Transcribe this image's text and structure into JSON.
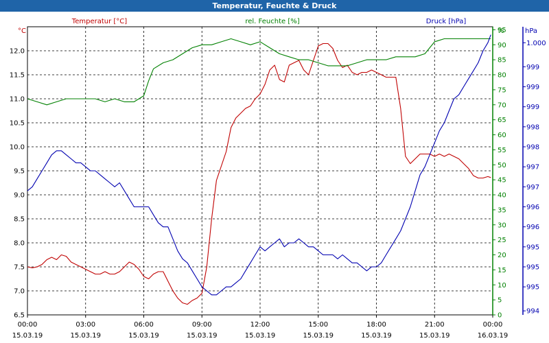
{
  "window_title": "Temperatur, Feuchte & Druck",
  "colors": {
    "temperature": "#c00000",
    "humidity": "#008000",
    "pressure": "#0000b0",
    "grid": "#000000",
    "titlebar": "#1f64a8"
  },
  "chart_data": {
    "type": "line",
    "title": "Temperatur, Feuchte & Druck",
    "axes": {
      "left": {
        "unit_label": "°C",
        "min": 6.5,
        "max": 12.5,
        "ticks": [
          "6.5",
          "7.0",
          "7.5",
          "8.0",
          "8.5",
          "9.0",
          "9.5",
          "10.0",
          "10.5",
          "11.0",
          "11.5",
          "12.0"
        ]
      },
      "right1": {
        "unit_label": "%",
        "min": 0,
        "max": 96,
        "ticks": [
          "0",
          "5",
          "10",
          "15",
          "20",
          "25",
          "30",
          "35",
          "40",
          "45",
          "50",
          "55",
          "60",
          "65",
          "70",
          "75",
          "80",
          "85",
          "90",
          "95"
        ]
      },
      "right2": {
        "unit_label": "hPa",
        "ticks": [
          "994",
          "995",
          "995",
          "995",
          "996",
          "996",
          "997",
          "997",
          "998",
          "998",
          "999",
          "999",
          "999",
          "1.000"
        ]
      }
    },
    "x_ticks": [
      {
        "time": "00:00",
        "date": "15.03.19"
      },
      {
        "time": "03:00",
        "date": "15.03.19"
      },
      {
        "time": "06:00",
        "date": "15.03.19"
      },
      {
        "time": "09:00",
        "date": "15.03.19"
      },
      {
        "time": "12:00",
        "date": "15.03.19"
      },
      {
        "time": "15:00",
        "date": "15.03.19"
      },
      {
        "time": "18:00",
        "date": "15.03.19"
      },
      {
        "time": "21:00",
        "date": "15.03.19"
      },
      {
        "time": "00:00",
        "date": "16.03.19"
      }
    ],
    "x_range_hours": [
      0,
      24
    ],
    "series": [
      {
        "name": "Temperatur [°C]",
        "axis": "left",
        "color": "#c00000",
        "x": [
          0,
          0.25,
          0.5,
          0.75,
          1,
          1.25,
          1.5,
          1.75,
          2,
          2.25,
          2.5,
          2.75,
          3,
          3.25,
          3.5,
          3.75,
          4,
          4.25,
          4.5,
          4.75,
          5,
          5.25,
          5.5,
          5.75,
          6,
          6.25,
          6.5,
          6.75,
          7,
          7.25,
          7.5,
          7.75,
          8,
          8.25,
          8.5,
          8.75,
          9,
          9.25,
          9.5,
          9.75,
          10,
          10.25,
          10.5,
          10.75,
          11,
          11.25,
          11.5,
          11.75,
          12,
          12.25,
          12.5,
          12.75,
          13,
          13.25,
          13.5,
          13.75,
          14,
          14.25,
          14.5,
          14.75,
          15,
          15.25,
          15.5,
          15.75,
          16,
          16.25,
          16.5,
          16.75,
          17,
          17.25,
          17.5,
          17.75,
          18,
          18.25,
          18.5,
          18.75,
          19,
          19.25,
          19.5,
          19.75,
          20,
          20.25,
          20.5,
          20.75,
          21,
          21.25,
          21.5,
          21.75,
          22,
          22.25,
          22.5,
          22.75,
          23,
          23.25,
          23.5,
          23.75,
          23.9
        ],
        "values": [
          7.5,
          7.48,
          7.5,
          7.55,
          7.65,
          7.7,
          7.65,
          7.75,
          7.72,
          7.6,
          7.55,
          7.5,
          7.45,
          7.4,
          7.35,
          7.35,
          7.4,
          7.35,
          7.35,
          7.4,
          7.5,
          7.6,
          7.55,
          7.45,
          7.3,
          7.25,
          7.35,
          7.4,
          7.4,
          7.2,
          7.0,
          6.85,
          6.75,
          6.72,
          6.8,
          6.85,
          6.95,
          7.5,
          8.5,
          9.3,
          9.6,
          9.9,
          10.4,
          10.6,
          10.7,
          10.8,
          10.85,
          11.0,
          11.1,
          11.3,
          11.6,
          11.7,
          11.4,
          11.35,
          11.7,
          11.75,
          11.8,
          11.6,
          11.5,
          11.8,
          12.1,
          12.15,
          12.15,
          12.05,
          11.8,
          11.65,
          11.7,
          11.55,
          11.5,
          11.55,
          11.55,
          11.6,
          11.55,
          11.5,
          11.45,
          11.45,
          11.45,
          10.8,
          9.8,
          9.65,
          9.75,
          9.85,
          9.85,
          9.85,
          9.8,
          9.85,
          9.8,
          9.85,
          9.8,
          9.75,
          9.65,
          9.55,
          9.4,
          9.35,
          9.35,
          9.38,
          9.36
        ],
        "note": ""
      },
      {
        "name": "rel. Feuchte [%]",
        "axis": "right1",
        "color": "#008000",
        "x": [
          0,
          0.5,
          1,
          1.5,
          2,
          2.5,
          3,
          3.5,
          4,
          4.5,
          5,
          5.5,
          6,
          6.25,
          6.5,
          7,
          7.5,
          8,
          8.5,
          9,
          9.5,
          10,
          10.5,
          11,
          11.5,
          12,
          12.5,
          13,
          13.5,
          14,
          14.5,
          15,
          15.5,
          16,
          16.5,
          17,
          17.5,
          18,
          18.5,
          19,
          19.5,
          20,
          20.5,
          21,
          21.5,
          22,
          22.5,
          23,
          23.5,
          23.9
        ],
        "values": [
          72,
          71,
          70,
          71,
          72,
          72,
          72,
          72,
          71,
          72,
          71,
          71,
          73,
          78,
          82,
          84,
          85,
          87,
          89,
          90,
          90,
          91,
          92,
          91,
          90,
          91,
          89,
          87,
          86,
          85,
          85,
          84,
          83,
          83,
          83,
          84,
          85,
          85,
          85,
          86,
          86,
          86,
          87,
          91,
          92,
          92,
          92,
          92,
          92,
          92
        ]
      },
      {
        "name": "Druck [hPa]",
        "axis": "right2",
        "color": "#0000b0",
        "x": [
          0,
          0.25,
          0.5,
          0.75,
          1,
          1.25,
          1.5,
          1.75,
          2,
          2.25,
          2.5,
          2.75,
          3,
          3.25,
          3.5,
          3.75,
          4,
          4.25,
          4.5,
          4.75,
          5,
          5.25,
          5.5,
          5.75,
          6,
          6.25,
          6.5,
          6.75,
          7,
          7.25,
          7.5,
          7.75,
          8,
          8.25,
          8.5,
          8.75,
          9,
          9.25,
          9.5,
          9.75,
          10,
          10.25,
          10.5,
          10.75,
          11,
          11.25,
          11.5,
          11.75,
          12,
          12.25,
          12.5,
          12.75,
          13,
          13.25,
          13.5,
          13.75,
          14,
          14.25,
          14.5,
          14.75,
          15,
          15.25,
          15.5,
          15.75,
          16,
          16.25,
          16.5,
          16.75,
          17,
          17.25,
          17.5,
          17.75,
          18,
          18.25,
          18.5,
          18.75,
          19,
          19.25,
          19.5,
          19.75,
          20,
          20.25,
          20.5,
          20.75,
          21,
          21.25,
          21.5,
          21.75,
          22,
          22.25,
          22.5,
          22.75,
          23,
          23.25,
          23.5,
          23.75,
          23.9
        ],
        "values": [
          997.0,
          997.1,
          997.3,
          997.5,
          997.7,
          997.9,
          998.0,
          998.0,
          997.9,
          997.8,
          997.7,
          997.7,
          997.6,
          997.5,
          997.5,
          997.4,
          997.3,
          997.2,
          997.1,
          997.2,
          997.0,
          996.8,
          996.6,
          996.6,
          996.6,
          996.6,
          996.4,
          996.2,
          996.1,
          996.1,
          995.8,
          995.5,
          995.3,
          995.2,
          995.0,
          994.8,
          994.6,
          994.5,
          994.4,
          994.4,
          994.5,
          994.6,
          994.6,
          994.7,
          994.8,
          995.0,
          995.2,
          995.4,
          995.6,
          995.5,
          995.6,
          995.7,
          995.8,
          995.6,
          995.7,
          995.7,
          995.8,
          995.7,
          995.6,
          995.6,
          995.5,
          995.4,
          995.4,
          995.4,
          995.3,
          995.4,
          995.3,
          995.2,
          995.2,
          995.1,
          995.0,
          995.1,
          995.1,
          995.2,
          995.4,
          995.6,
          995.8,
          996.0,
          996.3,
          996.6,
          997.0,
          997.4,
          997.6,
          997.9,
          998.2,
          998.5,
          998.7,
          999.0,
          999.3,
          999.4,
          999.6,
          999.8,
          1000.0,
          1000.2,
          1000.5,
          1000.7,
          1000.9
        ]
      }
    ],
    "legend": {
      "temperature": "Temperatur [°C]",
      "humidity": "rel. Feuchte [%]",
      "pressure": "Druck [hPa]"
    },
    "grid": true
  }
}
